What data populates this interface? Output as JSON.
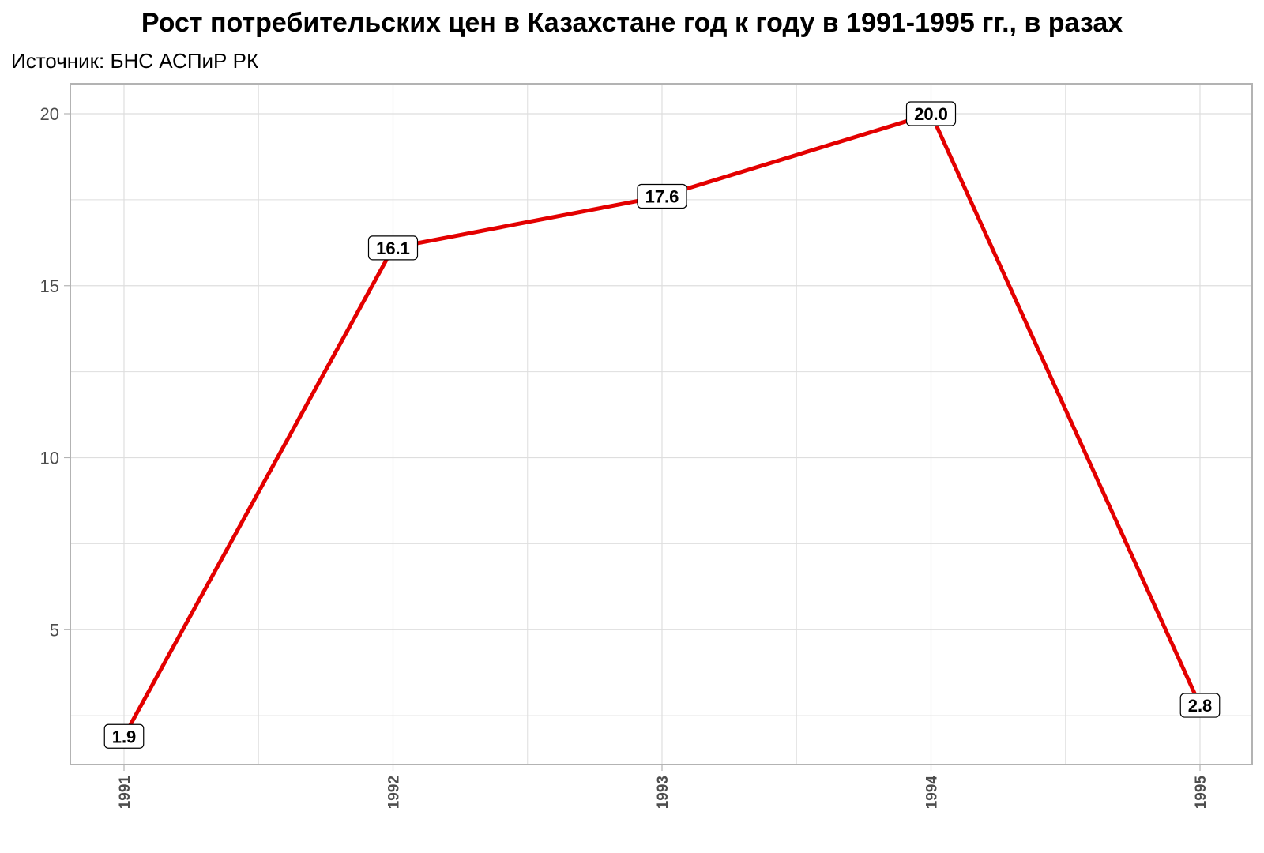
{
  "header": {
    "title": "Рост потребительских цен в Казахстане год к году в 1991-1995 гг., в разах",
    "subtitle": "Источник: БНС АСПиР РК"
  },
  "colors": {
    "line": "#e30000",
    "grid": "#dedede",
    "axis": "#b3b3b3",
    "tick_text": "#4d4d4d",
    "label_border": "#000000",
    "label_fill": "#ffffff"
  },
  "chart_data": {
    "type": "line",
    "title": "Рост потребительских цен в Казахстане год к году в 1991-1995 гг., в разах",
    "subtitle": "Источник: БНС АСПиР РК",
    "xlabel": "",
    "ylabel": "",
    "categories": [
      "1991",
      "1992",
      "1993",
      "1994",
      "1995"
    ],
    "values": [
      1.9,
      16.1,
      17.6,
      20.0,
      2.8
    ],
    "data_labels": [
      "1.9",
      "16.1",
      "17.6",
      "20.0",
      "2.8"
    ],
    "yticks": [
      "5",
      "10",
      "15",
      "20"
    ],
    "ylim": [
      1.1,
      20.9
    ],
    "grid": true,
    "legend": "none",
    "x_tick_rotation": -90
  }
}
